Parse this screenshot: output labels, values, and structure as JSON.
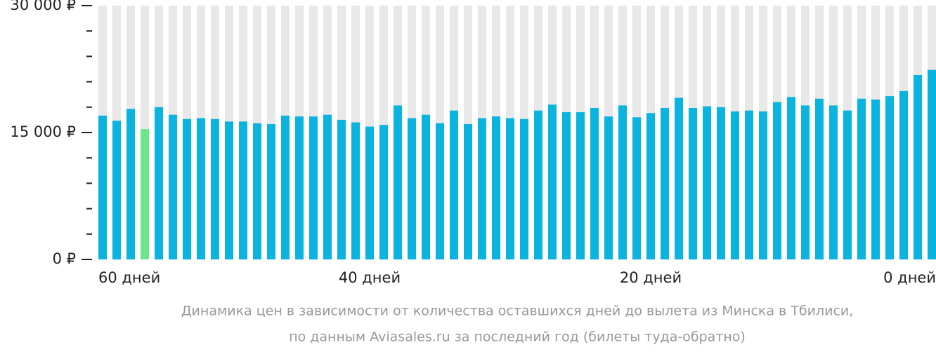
{
  "chart_data": {
    "type": "bar",
    "caption": [
      "Динамика цен в зависимости от количества оставшихся дней до вылета из Минска в Тбилиси,",
      "по данным Aviasales.ru за последний год (билеты туда-обратно)"
    ],
    "categories": [
      "60 дней",
      null,
      null,
      null,
      null,
      null,
      null,
      null,
      null,
      null,
      null,
      null,
      null,
      null,
      null,
      null,
      null,
      null,
      null,
      "40 дней",
      null,
      null,
      null,
      null,
      null,
      null,
      null,
      null,
      null,
      null,
      null,
      null,
      null,
      null,
      null,
      null,
      null,
      null,
      null,
      "20 дней",
      null,
      null,
      null,
      null,
      null,
      null,
      null,
      null,
      null,
      null,
      null,
      null,
      null,
      null,
      null,
      null,
      null,
      null,
      null,
      "0 дней"
    ],
    "values": [
      17000,
      16400,
      17800,
      15400,
      18000,
      17100,
      16600,
      16700,
      16600,
      16300,
      16300,
      16100,
      16000,
      17000,
      16900,
      16900,
      17100,
      16500,
      16200,
      15700,
      15900,
      18200,
      16700,
      17100,
      16100,
      17600,
      16000,
      16700,
      16900,
      16700,
      16600,
      17600,
      18300,
      17400,
      17400,
      17900,
      16900,
      18200,
      16800,
      17300,
      17900,
      19100,
      17900,
      18100,
      18000,
      17500,
      17600,
      17500,
      18600,
      19200,
      18200,
      19000,
      18200,
      17600,
      19000,
      18900,
      19300,
      19900,
      21800,
      22400
    ],
    "color": "#0bb3df",
    "highlight": {
      "index": 3,
      "color": "#6ce68a"
    },
    "background_color": "#e8e8e8",
    "ylim": [
      0,
      30000
    ],
    "yticks": [
      {
        "value": 0,
        "label": "0 ₽"
      },
      {
        "value": 15000,
        "label": "15 000 ₽"
      },
      {
        "value": 30000,
        "label": "30 000 ₽"
      }
    ],
    "yminorticks": [
      3000,
      6000,
      9000,
      12000,
      18000,
      21000,
      24000,
      27000
    ]
  }
}
